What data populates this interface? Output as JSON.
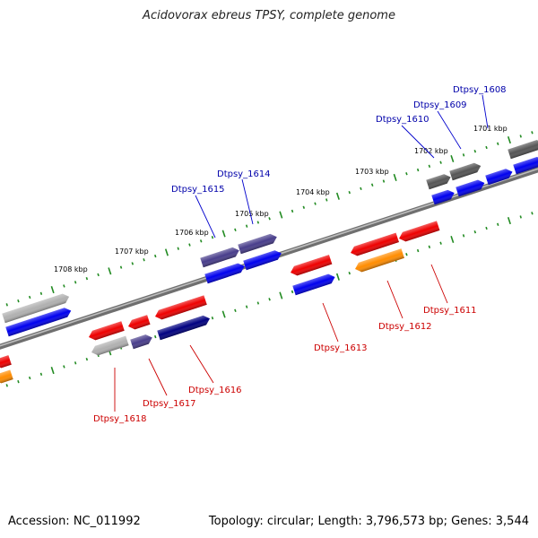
{
  "title": "Acidovorax ebreus TPSY, complete genome",
  "footer": {
    "accession": "Accession: NC_011992",
    "info": "Topology: circular; Length: 3,796,573 bp; Genes: 3,544"
  },
  "colors": {
    "background": "#ffffff",
    "backbone": "#808080",
    "tick": "#228b22",
    "label_forward": "#0000aa",
    "label_reverse": "#cc0000",
    "leader_forward": "#0000cc",
    "leader_reverse": "#cc0000"
  },
  "scale_ticks": [
    {
      "label": "1708 kbp"
    },
    {
      "label": "1707 kbp"
    },
    {
      "label": "1706 kbp"
    },
    {
      "label": "1705 kbp"
    },
    {
      "label": "1704 kbp"
    },
    {
      "label": "1703 kbp"
    },
    {
      "label": "1702 kbp"
    },
    {
      "label": "1701 kbp"
    }
  ],
  "gene_labels": {
    "forward": [
      "Dtpsy_1608",
      "Dtpsy_1609",
      "Dtpsy_1610",
      "Dtpsy_1614",
      "Dtpsy_1615"
    ],
    "reverse": [
      "Dtpsy_1611",
      "Dtpsy_1612",
      "Dtpsy_1613",
      "Dtpsy_1616",
      "Dtpsy_1617",
      "Dtpsy_1618"
    ]
  },
  "feature_colors": {
    "blue": "#0000ee",
    "navy": "#000080",
    "slate": "#483d8b",
    "grey": "#808080",
    "dark_grey": "#555555",
    "light_grey": "#b0b0b0",
    "red": "#ee0000",
    "orange": "#ff8c00"
  }
}
